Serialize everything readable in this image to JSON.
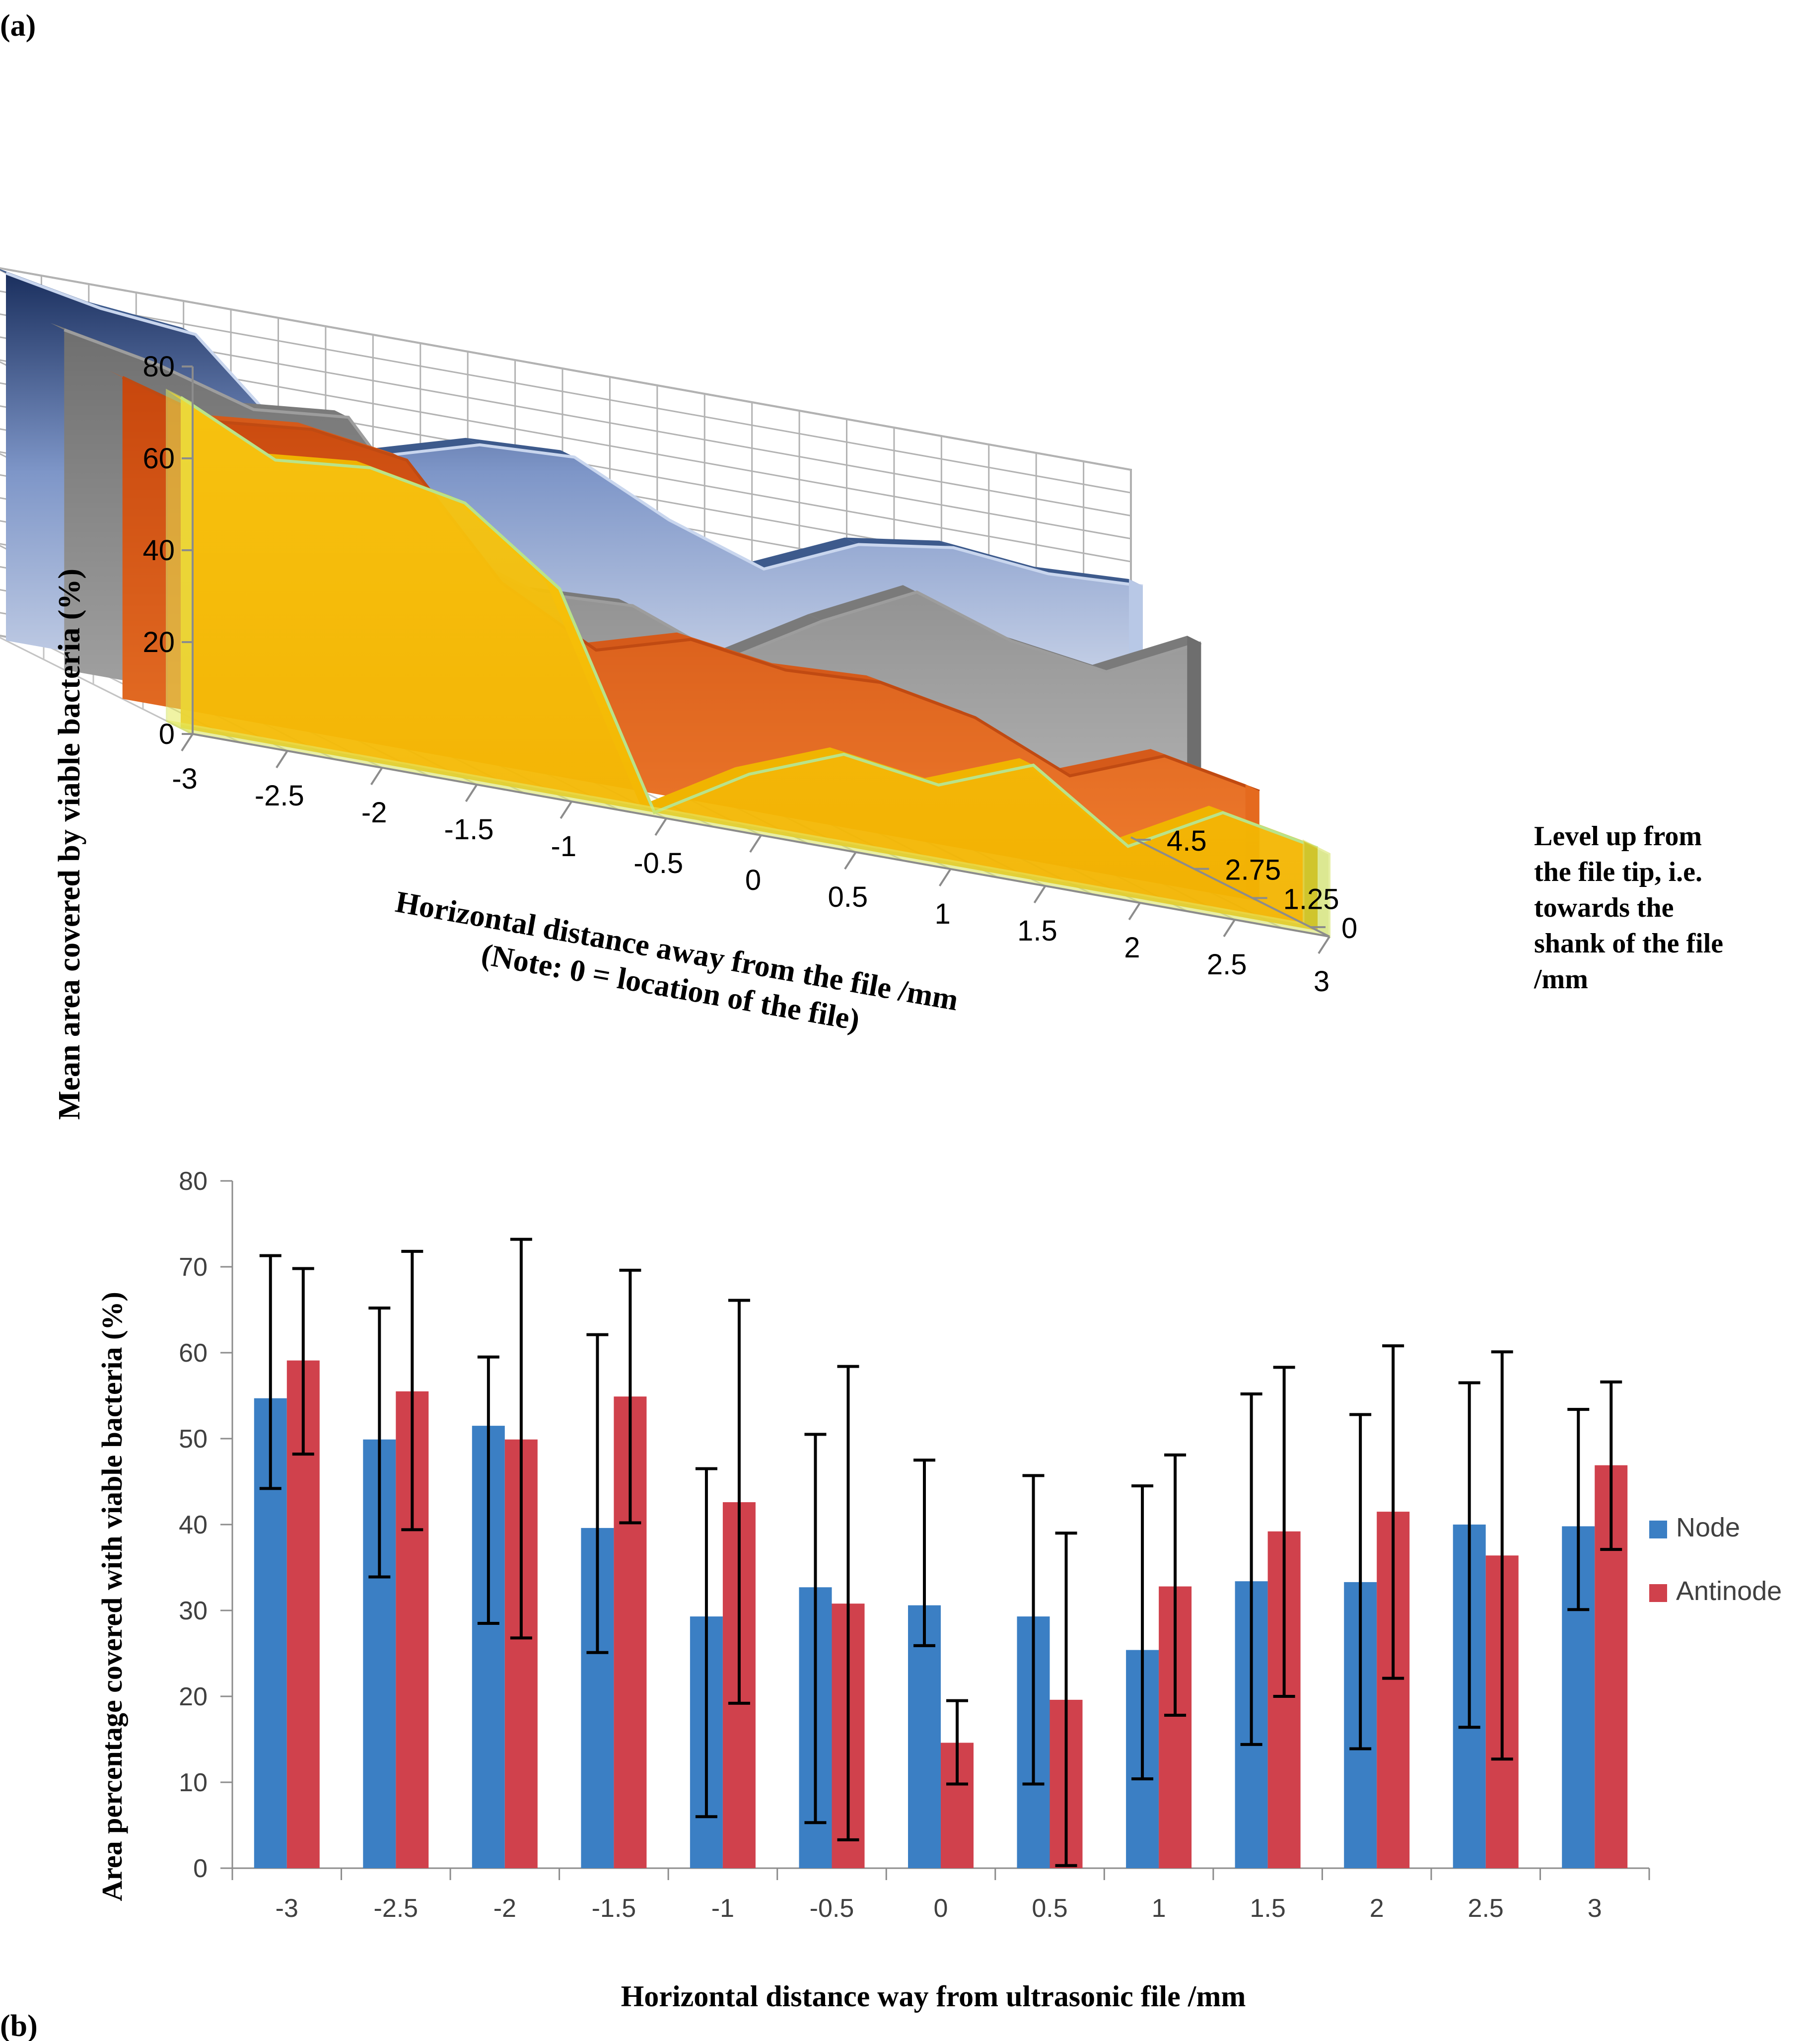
{
  "figure_labels": {
    "a": "(a)",
    "b": "(b)"
  },
  "chart_data": [
    {
      "type": "area-3d",
      "panel": "(a)",
      "title": "",
      "ylabel": "Mean area covered by viable bacteria (%)",
      "xlabel_line1": "Horizontal distance away from the file /mm",
      "xlabel_line2": "(Note: 0 = location of the file)",
      "zlabel_lines": [
        "Level up from",
        "the file tip, i.e.",
        "towards the",
        "shank of the file",
        "/mm"
      ],
      "ylim": [
        0,
        80
      ],
      "y_ticks": [
        "0",
        "20",
        "40",
        "60",
        "80"
      ],
      "x_ticks": [
        "-3",
        "-2.5",
        "-2",
        "-1.5",
        "-1",
        "-0.5",
        "0",
        "0.5",
        "1",
        "1.5",
        "2",
        "2.5",
        "3"
      ],
      "x": [
        -3,
        -2.5,
        -2,
        -1.5,
        -1,
        -0.5,
        0,
        0.5,
        1,
        1.5,
        2,
        2.5,
        3
      ],
      "z_ticks": [
        "0",
        "1.25",
        "2.75",
        "4.5"
      ],
      "series": [
        {
          "name": "4.5",
          "color": "#3d5a8c",
          "values": [
            80,
            76,
            74,
            55,
            55,
            61,
            62,
            52,
            45,
            54,
            57,
            55,
            56
          ]
        },
        {
          "name": "2.75",
          "color": "#8c8c8c",
          "values": [
            74,
            70,
            64,
            66,
            42,
            35,
            36,
            28,
            40,
            50,
            43,
            40,
            50
          ]
        },
        {
          "name": "1.25",
          "color": "#e8651e",
          "values": [
            70,
            64,
            66,
            63,
            40,
            29,
            35,
            32,
            33,
            29,
            20,
            28,
            24
          ]
        },
        {
          "name": "0",
          "color": "#f5b800",
          "values": [
            72,
            62,
            64,
            60,
            45,
            0,
            12,
            20,
            17,
            25,
            11,
            22,
            18
          ]
        }
      ]
    },
    {
      "type": "bar",
      "panel": "(b)",
      "title": "",
      "ylabel": "Area percentage covered with viable bacteria (%)",
      "xlabel": "Horizontal distance way from ultrasonic file /mm",
      "ylim": [
        0,
        80
      ],
      "y_ticks": [
        "0",
        "10",
        "20",
        "30",
        "40",
        "50",
        "60",
        "70",
        "80"
      ],
      "categories": [
        "-3",
        "-2.5",
        "-2",
        "-1.5",
        "-1",
        "-0.5",
        "0",
        "0.5",
        "1",
        "1.5",
        "2",
        "2.5",
        "3"
      ],
      "series": [
        {
          "name": "Node",
          "color": "#3b7fc4",
          "values": [
            54.7,
            49.9,
            51.5,
            39.6,
            29.3,
            32.7,
            30.6,
            29.3,
            25.4,
            33.4,
            33.3,
            40.0,
            39.8
          ],
          "error_high": [
            71.3,
            65.2,
            59.5,
            62.1,
            46.5,
            50.5,
            47.5,
            45.7,
            44.5,
            55.2,
            52.8,
            56.5,
            53.4
          ],
          "error_low": [
            44.2,
            33.9,
            28.5,
            25.1,
            6.0,
            5.3,
            25.9,
            9.8,
            10.4,
            14.4,
            13.9,
            16.4,
            30.1
          ]
        },
        {
          "name": "Antinode",
          "color": "#d0414c",
          "values": [
            59.1,
            55.5,
            49.9,
            54.9,
            42.6,
            30.8,
            14.6,
            19.6,
            32.8,
            39.2,
            41.5,
            36.4,
            46.9
          ],
          "error_high": [
            69.8,
            71.8,
            73.2,
            69.6,
            66.1,
            58.4,
            19.5,
            39.0,
            48.1,
            58.3,
            60.8,
            60.1,
            56.6
          ],
          "error_low": [
            48.2,
            39.4,
            26.8,
            40.2,
            19.2,
            3.3,
            9.8,
            0.3,
            17.8,
            20.0,
            22.1,
            12.7,
            37.1
          ]
        }
      ],
      "legend": [
        "Node",
        "Antinode"
      ]
    }
  ]
}
